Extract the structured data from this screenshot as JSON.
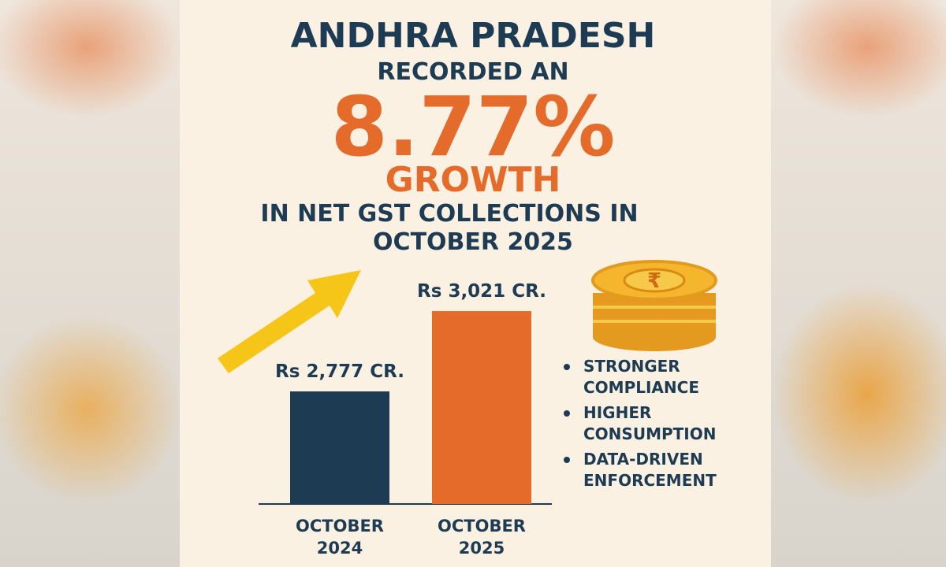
{
  "heading": {
    "line1": "ANDHRA PRADESH",
    "line2": "RECORDED AN",
    "figure": "8.77%",
    "line3": "GROWTH",
    "line4": "IN NET GST COLLECTIONS IN",
    "line5": "OCTOBER 2025"
  },
  "coin_symbol": "₹",
  "bullets": [
    "STRONGER COMPLIANCE",
    "HIGHER CONSUMPTION",
    "DATA-DRIVEN ENFORCEMENT"
  ],
  "chart_data": {
    "type": "bar",
    "categories": [
      "OCTOBER 2024",
      "OCTOBER 2025"
    ],
    "values": [
      2777,
      3021
    ],
    "value_labels": [
      "Rs 2,777 CR.",
      "Rs 3,021 CR."
    ],
    "colors": [
      "#1d3b52",
      "#e56b2b"
    ],
    "ylim": [
      2435,
      3100
    ]
  }
}
